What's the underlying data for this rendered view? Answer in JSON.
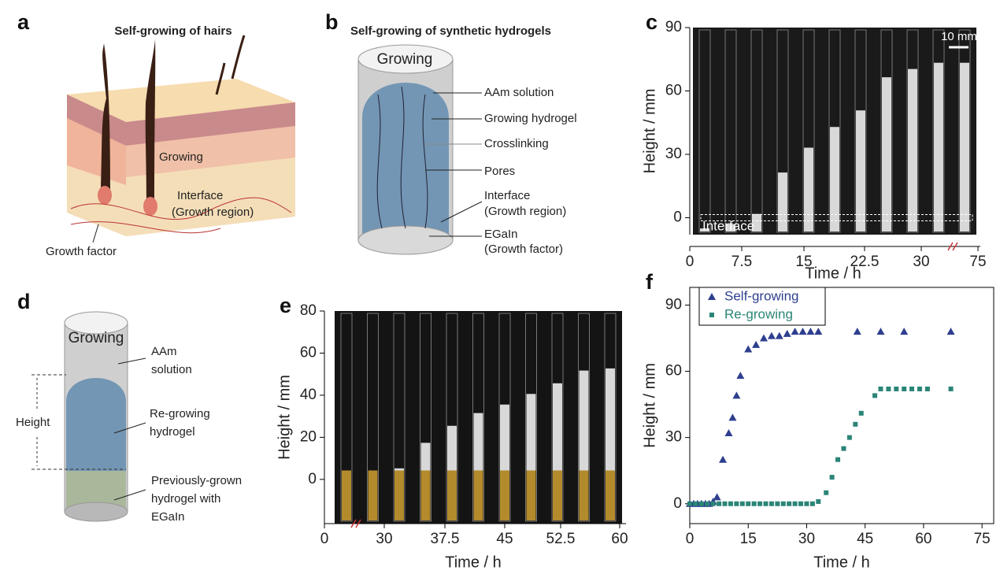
{
  "panel_a": {
    "letter": "a",
    "title": "Self-growing of hairs",
    "labels": [
      "Growing",
      "Interface",
      "(Growth region)",
      "Growth factor"
    ]
  },
  "panel_b": {
    "letter": "b",
    "title": "Self-growing of synthetic hydrogels",
    "top": "Growing",
    "labels": [
      "AAm solution",
      "Growing hydrogel",
      "Crosslinking",
      "Pores",
      "Interface",
      "(Growth region)",
      "EGaIn",
      "(Growth factor)"
    ]
  },
  "panel_d": {
    "letter": "d",
    "top": "Growing",
    "side": "Height",
    "labels": [
      "AAm",
      "solution",
      "Re-growing",
      "hydrogel",
      "Previously-grown",
      "hydrogel with",
      "EGaIn"
    ]
  },
  "chart_data": [
    {
      "type": "image",
      "letter": "c",
      "xlabel": "Time / h",
      "ylabel": "Height / mm",
      "xticks": [
        0,
        7.5,
        15,
        22.5,
        30,
        75
      ],
      "ylim": [
        -8,
        90
      ],
      "yticks": [
        0,
        30,
        60,
        90
      ],
      "scale_bar": "10 mm",
      "annotation": "Interface"
    },
    {
      "type": "image",
      "letter": "e",
      "xlabel": "Time / h",
      "ylabel": "Height / mm",
      "xticks": [
        0,
        30,
        37.5,
        45,
        52.5,
        60
      ],
      "ylim": [
        -21,
        80
      ],
      "yticks": [
        0,
        20,
        40,
        60,
        80
      ]
    },
    {
      "type": "scatter",
      "letter": "f",
      "xlabel": "Time / h",
      "ylabel": "Height / mm",
      "xlim": [
        0,
        78
      ],
      "ylim": [
        -9,
        98
      ],
      "xticks": [
        0,
        15,
        30,
        45,
        60,
        75
      ],
      "yticks": [
        0,
        30,
        60,
        90
      ],
      "legend": "upper left",
      "series": [
        {
          "name": "Self-growing",
          "color": "#2e3f8f",
          "marker": "triangle",
          "x": [
            0,
            1,
            2,
            3,
            4,
            5,
            6,
            7,
            8.5,
            10,
            11,
            12,
            13,
            15,
            17,
            19,
            21,
            23,
            25,
            27,
            29,
            31,
            33,
            43,
            49,
            55,
            67
          ],
          "values": [
            0,
            0,
            0,
            0,
            0,
            0,
            1,
            3,
            20,
            32,
            39,
            49,
            58,
            70,
            72,
            75,
            76,
            76,
            77,
            78,
            78,
            78,
            78,
            78,
            78,
            78,
            78
          ]
        },
        {
          "name": "Re-growing",
          "color": "#2b8577",
          "marker": "square",
          "x": [
            0,
            1.5,
            3,
            4.5,
            6,
            7.5,
            9,
            10.5,
            12,
            13.5,
            15,
            16.5,
            18,
            19.5,
            21,
            22.5,
            24,
            25.5,
            27,
            28.5,
            30,
            31.5,
            33,
            35,
            36.5,
            38,
            39.5,
            41,
            42.5,
            44,
            47.5,
            49,
            51,
            53,
            55,
            57,
            59,
            61,
            67
          ],
          "values": [
            0,
            0,
            0,
            0,
            0,
            0,
            0,
            0,
            0,
            0,
            0,
            0,
            0,
            0,
            0,
            0,
            0,
            0,
            0,
            0,
            0,
            0,
            1,
            5,
            12,
            20,
            25,
            30,
            36,
            41,
            49,
            52,
            52,
            52,
            52,
            52,
            52,
            52,
            52
          ]
        }
      ]
    }
  ]
}
